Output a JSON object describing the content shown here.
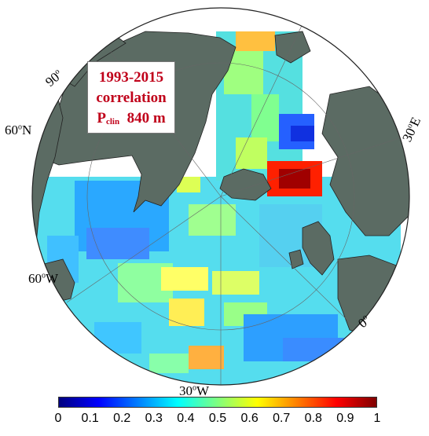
{
  "title_box": {
    "line1": "1993-2015",
    "line2": "correlation",
    "line3_main": "P",
    "line3_sub": "clin",
    "line3_value": "840 m"
  },
  "graticule_labels": {
    "lat60": {
      "deg": "60",
      "sup": "o",
      "hemi": "N"
    },
    "lon90": {
      "deg": "90",
      "sup": "o"
    },
    "lon60": {
      "deg": "60",
      "sup": "o",
      "hemi": "W"
    },
    "lon30": {
      "deg": "30",
      "sup": "o",
      "hemi": "W"
    },
    "lon0": {
      "deg": "0",
      "sup": "o"
    },
    "lon30e": {
      "deg": "30",
      "sup": "o",
      "hemi": "E"
    }
  },
  "colorbar": {
    "ticks": [
      "0",
      "0.1",
      "0.2",
      "0.3",
      "0.4",
      "0.5",
      "0.6",
      "0.7",
      "0.8",
      "0.9",
      "1"
    ],
    "colors": [
      "#00007f",
      "#0000ff",
      "#007fff",
      "#00ffff",
      "#7fff7f",
      "#ffff00",
      "#ff7f00",
      "#ff0000",
      "#7f0000"
    ]
  },
  "colors": {
    "land": "#5b6b63",
    "ocean_default": "#33ccff",
    "border": "#222222"
  }
}
